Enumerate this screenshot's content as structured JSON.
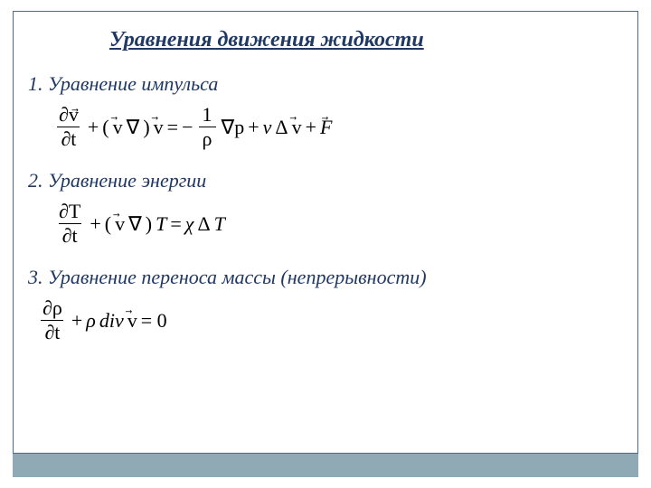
{
  "colors": {
    "title_color": "#1f3864",
    "heading_color": "#1f3864",
    "equation_color": "#000000",
    "frame_border": "#3f6fa3",
    "footer_bar": "#8faab5",
    "background": "#ffffff"
  },
  "title": "Уравнения движения жидкости",
  "sections": [
    {
      "heading": "1. Уравнение импульса"
    },
    {
      "heading": "2. Уравнение энергии"
    },
    {
      "heading": "3. Уравнение переноса массы (непрерывности)"
    }
  ],
  "equations": {
    "eq1": {
      "lhs_num": "∂v",
      "lhs_den": "∂t",
      "plus": "+",
      "grad_open": "(",
      "v": "v",
      "nabla": "∇",
      "grad_close": ")",
      "v2": "v",
      "eq": " = ",
      "minus": "−",
      "frac_num": "1",
      "frac_den": "ρ",
      "nabla_p": "∇p",
      "plus2": " + ",
      "nu": "ν",
      "delta": "Δ",
      "v3": "v",
      "plus3": " + ",
      "F": "F"
    },
    "eq2": {
      "lhs_num": "∂T",
      "lhs_den": "∂t",
      "plus": "+",
      "open": "(",
      "v": "v",
      "nabla": "∇",
      "close": ")",
      "T": "T",
      "eq": " = ",
      "chi": "χ",
      "delta": "Δ",
      "T2": "T"
    },
    "eq3": {
      "lhs_num": "∂ρ",
      "lhs_den": "∂t",
      "plus": " + ",
      "rho": "ρ",
      "div": "div",
      "v": "v",
      "eq": " = 0"
    }
  }
}
